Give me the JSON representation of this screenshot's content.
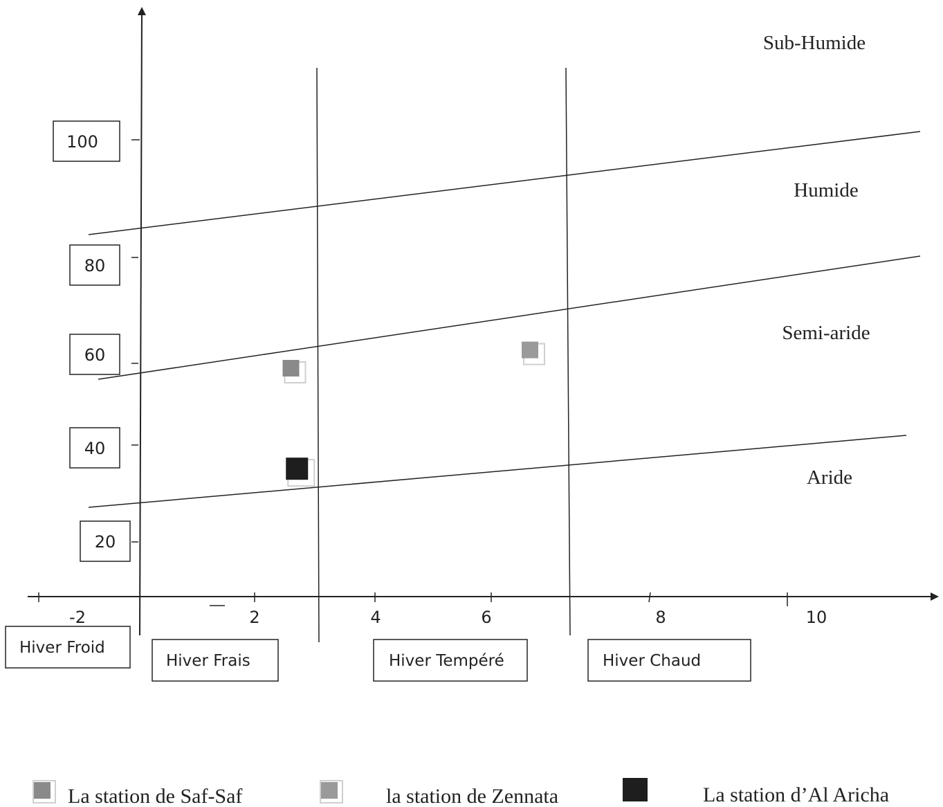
{
  "chart_data": {
    "type": "scatter",
    "xlim": [
      -2,
      11
    ],
    "ylim": [
      0,
      120
    ],
    "x_ticks": [
      "-2",
      "2",
      "4",
      "6",
      "8",
      "10"
    ],
    "y_ticks": [
      "100",
      "80",
      "60",
      "40",
      "20"
    ],
    "zones": [
      "Sub-Humide",
      "Humide",
      "Semi-aride",
      "Aride"
    ],
    "winter_classes": [
      "Hiver Froid",
      "Hiver Frais",
      "Hiver Tempéré",
      "Hiver Chaud"
    ],
    "series": [
      {
        "name": "La station de Saf-Saf",
        "color": "#8a8a8a",
        "points": [
          {
            "x": 2.6,
            "y": 50
          }
        ]
      },
      {
        "name": "la station de Zennata",
        "color": "#9a9a9a",
        "points": [
          {
            "x": 6.5,
            "y": 54
          }
        ]
      },
      {
        "name": "La station d’Al Aricha",
        "color": "#1e1e1e",
        "points": [
          {
            "x": 2.7,
            "y": 28
          }
        ]
      }
    ]
  }
}
